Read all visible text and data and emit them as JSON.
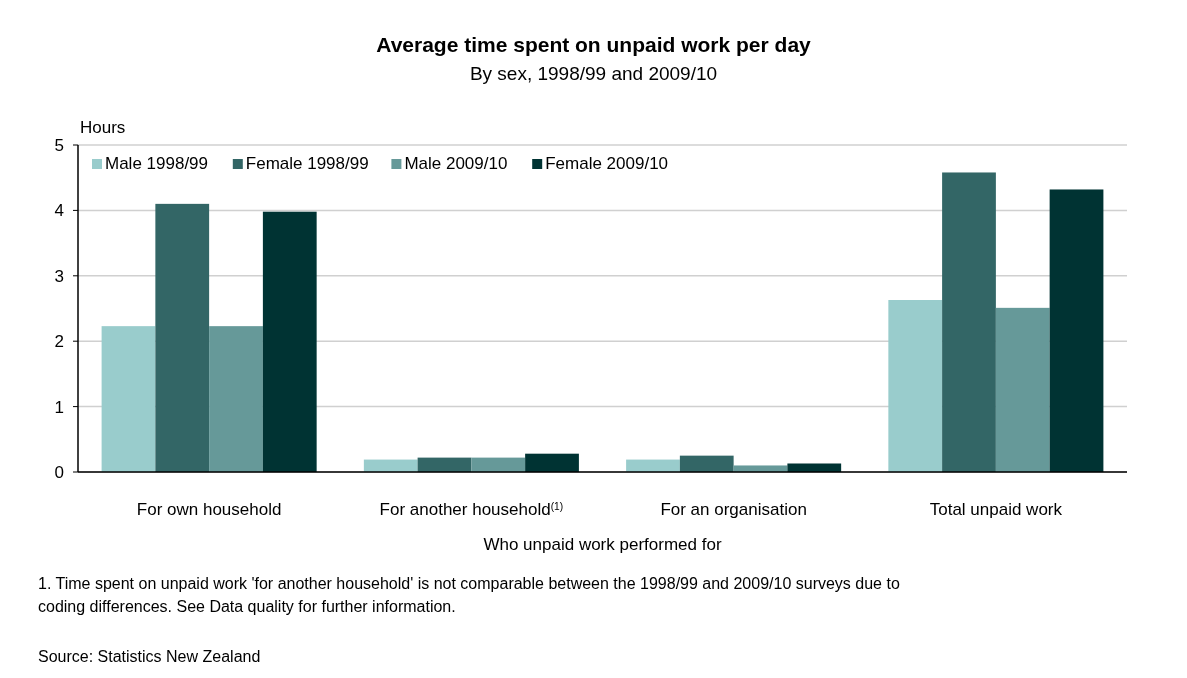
{
  "chart_data": {
    "type": "bar",
    "title": "Average time spent on unpaid work per day",
    "subtitle": "By sex, 1998/99 and 2009/10",
    "ylabel": "Hours",
    "xlabel": "Who unpaid work performed for",
    "categories": [
      "For own household",
      "For another household$^{(1)}$",
      "For an organisation",
      "Total unpaid work"
    ],
    "series": [
      {
        "name": "Male 1998/99",
        "color": "#99cccc",
        "values": [
          2.23,
          0.19,
          0.19,
          2.63
        ]
      },
      {
        "name": "Female 1998/99",
        "color": "#336666",
        "values": [
          4.1,
          0.22,
          0.25,
          4.58
        ]
      },
      {
        "name": "Male 2009/10",
        "color": "#669999",
        "values": [
          2.23,
          0.22,
          0.1,
          2.51
        ]
      },
      {
        "name": "Female 2009/10",
        "color": "#003333",
        "values": [
          3.98,
          0.28,
          0.13,
          4.32
        ]
      }
    ],
    "ylim": [
      0,
      5
    ],
    "yticks": [
      0,
      1,
      2,
      3,
      4,
      5
    ],
    "grid": "y",
    "legend": "top left",
    "annotations": [
      "1. Time spent on unpaid work 'for another household' is not comparable between the 1998/99 and 2009/10 surveys due to coding differences.  See Data quality for further information.",
      "Source: Statistics New Zealand"
    ]
  }
}
